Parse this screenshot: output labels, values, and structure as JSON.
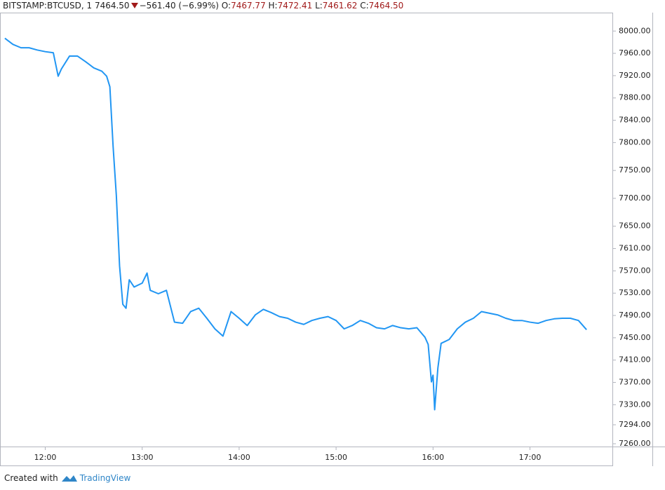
{
  "chart_data": {
    "type": "line",
    "header": {
      "symbol": "BITSTAMP:BTCUSD, 1",
      "last": "7464.50",
      "change": "−561.40 (−6.99%)",
      "ohlc": [
        {
          "label": "O:",
          "value": "7467.77"
        },
        {
          "label": "H:",
          "value": "7472.41"
        },
        {
          "label": "L:",
          "value": "7461.62"
        },
        {
          "label": "C:",
          "value": "7464.50"
        }
      ]
    },
    "x": [
      "11:35",
      "11:40",
      "11:45",
      "11:50",
      "11:55",
      "12:00",
      "12:05",
      "12:08",
      "12:10",
      "12:15",
      "12:20",
      "12:25",
      "12:30",
      "12:35",
      "12:38",
      "12:40",
      "12:42",
      "12:44",
      "12:46",
      "12:48",
      "12:50",
      "12:52",
      "12:55",
      "13:00",
      "13:03",
      "13:05",
      "13:10",
      "13:15",
      "13:20",
      "13:25",
      "13:30",
      "13:35",
      "13:40",
      "13:45",
      "13:50",
      "13:55",
      "14:00",
      "14:05",
      "14:10",
      "14:15",
      "14:20",
      "14:25",
      "14:30",
      "14:35",
      "14:40",
      "14:45",
      "14:50",
      "14:55",
      "15:00",
      "15:05",
      "15:10",
      "15:15",
      "15:20",
      "15:25",
      "15:30",
      "15:35",
      "15:40",
      "15:45",
      "15:50",
      "15:55",
      "15:57",
      "15:59",
      "16:00",
      "16:01",
      "16:03",
      "16:05",
      "16:10",
      "16:15",
      "16:20",
      "16:25",
      "16:30",
      "16:35",
      "16:40",
      "16:45",
      "16:50",
      "16:55",
      "17:00",
      "17:05",
      "17:10",
      "17:15",
      "17:20",
      "17:25",
      "17:30",
      "17:35"
    ],
    "series": [
      {
        "name": "BTCUSD",
        "color": "#2196f3",
        "values": [
          7987,
          7976,
          7970,
          7970,
          7966,
          7963,
          7961,
          7919,
          7932,
          7955,
          7955,
          7945,
          7934,
          7928,
          7919,
          7900,
          7793,
          7705,
          7579,
          7510,
          7503,
          7554,
          7541,
          7548,
          7566,
          7535,
          7529,
          7535,
          7478,
          7476,
          7497,
          7503,
          7485,
          7466,
          7453,
          7497,
          7485,
          7472,
          7491,
          7501,
          7495,
          7488,
          7485,
          7478,
          7474,
          7481,
          7485,
          7488,
          7481,
          7466,
          7472,
          7481,
          7476,
          7468,
          7466,
          7472,
          7468,
          7466,
          7468,
          7451,
          7438,
          7371,
          7383,
          7321,
          7396,
          7440,
          7447,
          7466,
          7478,
          7485,
          7497,
          7494,
          7491,
          7485,
          7481,
          7481,
          7478,
          7476,
          7481,
          7484,
          7485,
          7485,
          7481,
          7464.5
        ]
      }
    ],
    "xlim": [
      "11:32",
      "17:51"
    ],
    "xticks": [
      "12:00",
      "13:00",
      "14:00",
      "15:00",
      "16:00",
      "17:00"
    ],
    "ylim": [
      7255,
      8033
    ],
    "yticks": [
      {
        "value": 8000,
        "label": "8000.00"
      },
      {
        "value": 7960,
        "label": "7960.00"
      },
      {
        "value": 7920,
        "label": "7920.00"
      },
      {
        "value": 7880,
        "label": "7880.00"
      },
      {
        "value": 7840,
        "label": "7840.00"
      },
      {
        "value": 7800,
        "label": "7800.00"
      },
      {
        "value": 7750,
        "label": "7750.00"
      },
      {
        "value": 7700,
        "label": "7700.00"
      },
      {
        "value": 7650,
        "label": "7650.00"
      },
      {
        "value": 7610,
        "label": "7610.00"
      },
      {
        "value": 7570,
        "label": "7570.00"
      },
      {
        "value": 7530,
        "label": "7530.00"
      },
      {
        "value": 7490,
        "label": "7490.00"
      },
      {
        "value": 7450,
        "label": "7450.00"
      },
      {
        "value": 7410,
        "label": "7410.00"
      },
      {
        "value": 7370,
        "label": "7370.00"
      },
      {
        "value": 7330,
        "label": "7330.00"
      },
      {
        "value": 7294,
        "label": "7294.00"
      },
      {
        "value": 7260,
        "label": "7260.00"
      }
    ],
    "grid": false
  },
  "footer": {
    "text": "Created with",
    "brand": "TradingView"
  }
}
